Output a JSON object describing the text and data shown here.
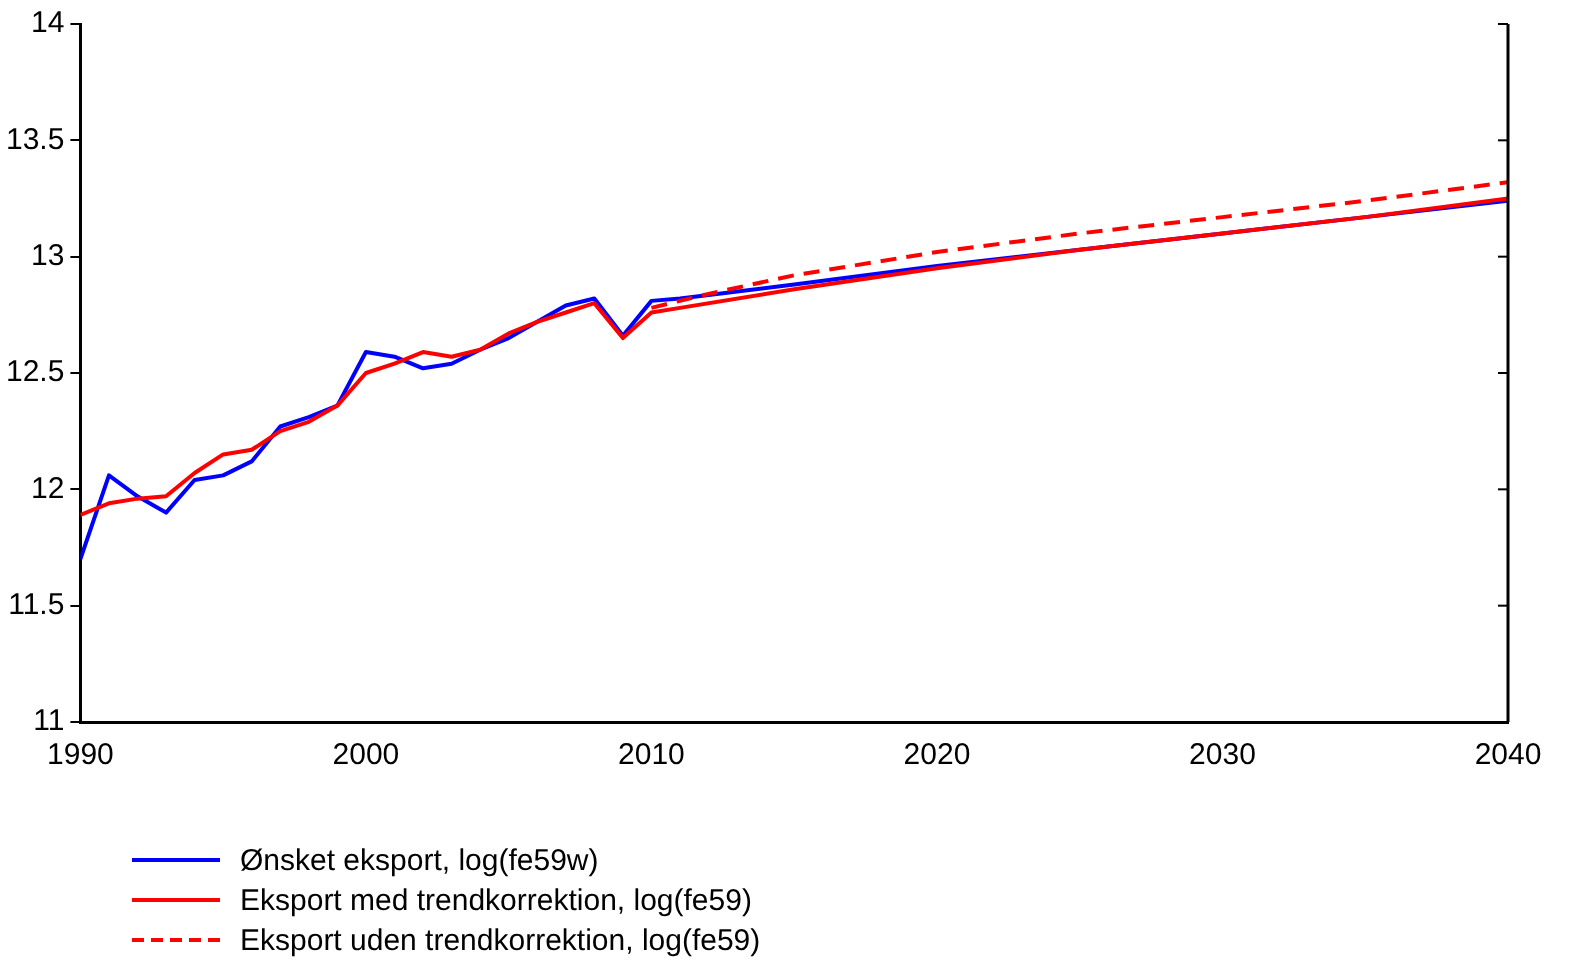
{
  "chart_data": {
    "type": "line",
    "xlim": [
      1990,
      2040
    ],
    "xticks": [
      1990,
      2000,
      2010,
      2020,
      2030,
      2040
    ],
    "ylim": [
      11,
      14
    ],
    "yticks": [
      11,
      11.5,
      12,
      12.5,
      13,
      13.5,
      14
    ],
    "grid": false,
    "legend": "bottom left",
    "marker": "none",
    "series": [
      {
        "name": "Ønsket eksport, log(fe59w)",
        "color": "#0000ff",
        "x": [
          1990,
          1991,
          1992,
          1993,
          1994,
          1995,
          1996,
          1997,
          1998,
          1999,
          2000,
          2001,
          2002,
          2003,
          2004,
          2005,
          2006,
          2007,
          2008,
          2009,
          2010,
          2011,
          2015,
          2020,
          2025,
          2030,
          2035,
          2040
        ],
        "values": [
          11.7,
          12.06,
          11.97,
          11.9,
          12.04,
          12.06,
          12.12,
          12.27,
          12.31,
          12.36,
          12.59,
          12.57,
          12.52,
          12.54,
          12.6,
          12.65,
          12.72,
          12.79,
          12.82,
          12.66,
          12.81,
          12.82,
          12.88,
          12.96,
          13.03,
          13.1,
          13.17,
          13.24
        ]
      },
      {
        "name": "Eksport med trendkorrektion, log(fe59)",
        "color": "#ff0000",
        "x": [
          1990,
          1991,
          1992,
          1993,
          1994,
          1995,
          1996,
          1997,
          1998,
          1999,
          2000,
          2001,
          2002,
          2003,
          2004,
          2005,
          2006,
          2007,
          2008,
          2009,
          2010,
          2011,
          2015,
          2020,
          2025,
          2030,
          2035,
          2040
        ],
        "values": [
          11.89,
          11.94,
          11.96,
          11.97,
          12.07,
          12.15,
          12.17,
          12.25,
          12.29,
          12.36,
          12.5,
          12.54,
          12.59,
          12.57,
          12.6,
          12.67,
          12.72,
          12.76,
          12.8,
          12.65,
          12.76,
          12.78,
          12.86,
          12.95,
          13.03,
          13.1,
          13.17,
          13.25
        ]
      },
      {
        "name": "Eksport uden trendkorrektion, log(fe59)",
        "color": "#ff0000",
        "line_style": "dashed",
        "x": [
          2010,
          2012,
          2015,
          2020,
          2025,
          2030,
          2035,
          2040
        ],
        "values": [
          12.78,
          12.84,
          12.92,
          13.02,
          13.1,
          13.17,
          13.24,
          13.32
        ]
      }
    ]
  }
}
